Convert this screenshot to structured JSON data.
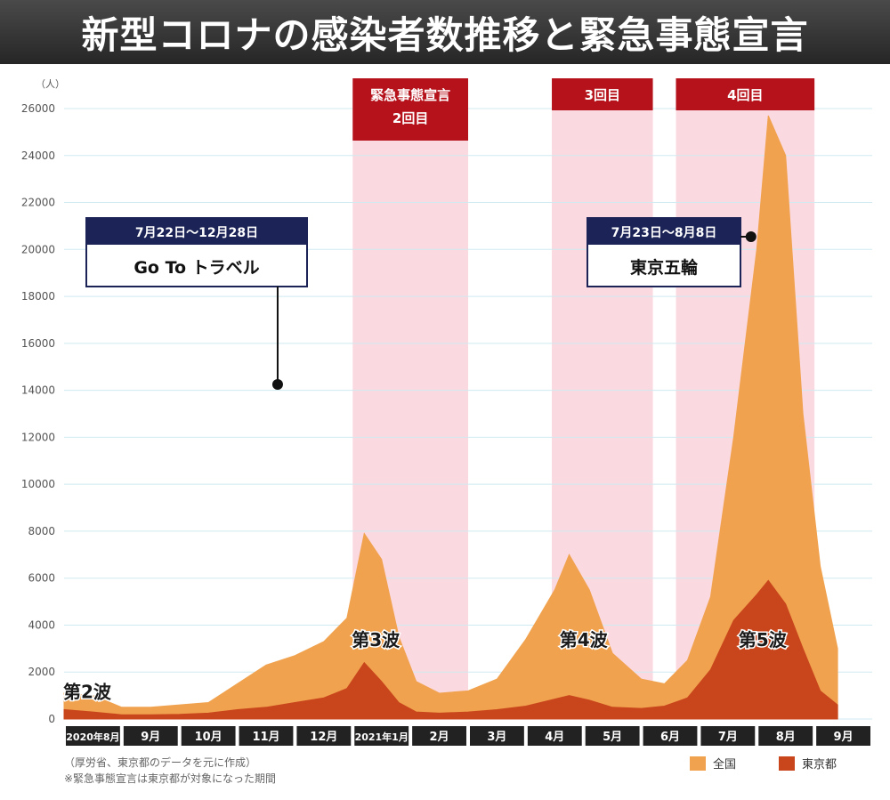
{
  "title": "新型コロナの感染者数推移と緊急事態宣言",
  "notes": [
    "（厚労省、東京都のデータを元に作成）",
    "※緊急事態宣言は東京都が対象になった期間"
  ],
  "colors": {
    "national": "#f0a24e",
    "tokyo": "#c9461c",
    "emergency_band": "#fbd9e1",
    "emergency_label": "#b5121b",
    "callout_header": "#1c2356",
    "grid": "#cfeaf0",
    "month_bar": "#222222"
  },
  "chart_data": {
    "type": "area",
    "ylabel": "（人）",
    "ylim": [
      0,
      26000
    ],
    "yticks": [
      0,
      2000,
      4000,
      6000,
      8000,
      10000,
      12000,
      14000,
      16000,
      18000,
      20000,
      22000,
      24000,
      26000
    ],
    "months": [
      "2020年8月",
      "9月",
      "10月",
      "11月",
      "12月",
      "2021年1月",
      "2月",
      "3月",
      "4月",
      "5月",
      "6月",
      "7月",
      "8月",
      "9月"
    ],
    "grid": true,
    "legend": {
      "position": "bottom-right",
      "items": [
        "全国",
        "東京都"
      ]
    },
    "series": [
      {
        "name": "全国",
        "points": [
          [
            0,
            1100
          ],
          [
            0.5,
            1000
          ],
          [
            1.0,
            500
          ],
          [
            1.5,
            500
          ],
          [
            2.0,
            600
          ],
          [
            2.5,
            700
          ],
          [
            3.0,
            1500
          ],
          [
            3.5,
            2300
          ],
          [
            4.0,
            2700
          ],
          [
            4.5,
            3300
          ],
          [
            4.9,
            4300
          ],
          [
            5.2,
            7900
          ],
          [
            5.5,
            6800
          ],
          [
            5.8,
            3500
          ],
          [
            6.1,
            1600
          ],
          [
            6.5,
            1100
          ],
          [
            7.0,
            1200
          ],
          [
            7.5,
            1700
          ],
          [
            8.0,
            3400
          ],
          [
            8.5,
            5500
          ],
          [
            8.75,
            7000
          ],
          [
            9.1,
            5500
          ],
          [
            9.5,
            2800
          ],
          [
            10.0,
            1700
          ],
          [
            10.4,
            1500
          ],
          [
            10.8,
            2500
          ],
          [
            11.2,
            5200
          ],
          [
            11.6,
            12000
          ],
          [
            12.0,
            20000
          ],
          [
            12.2,
            25700
          ],
          [
            12.5,
            24000
          ],
          [
            12.8,
            13000
          ],
          [
            13.1,
            6500
          ],
          [
            13.4,
            3000
          ]
        ]
      },
      {
        "name": "東京都",
        "points": [
          [
            0,
            400
          ],
          [
            0.5,
            300
          ],
          [
            1.0,
            180
          ],
          [
            1.5,
            180
          ],
          [
            2.0,
            200
          ],
          [
            2.5,
            250
          ],
          [
            3.0,
            400
          ],
          [
            3.5,
            500
          ],
          [
            4.0,
            700
          ],
          [
            4.5,
            900
          ],
          [
            4.9,
            1300
          ],
          [
            5.2,
            2400
          ],
          [
            5.5,
            1600
          ],
          [
            5.8,
            700
          ],
          [
            6.1,
            300
          ],
          [
            6.5,
            250
          ],
          [
            7.0,
            300
          ],
          [
            7.5,
            400
          ],
          [
            8.0,
            550
          ],
          [
            8.5,
            850
          ],
          [
            8.75,
            1000
          ],
          [
            9.1,
            800
          ],
          [
            9.5,
            500
          ],
          [
            10.0,
            450
          ],
          [
            10.4,
            550
          ],
          [
            10.8,
            900
          ],
          [
            11.2,
            2100
          ],
          [
            11.6,
            4200
          ],
          [
            12.0,
            5300
          ],
          [
            12.2,
            5900
          ],
          [
            12.5,
            4900
          ],
          [
            12.8,
            3000
          ],
          [
            13.1,
            1200
          ],
          [
            13.4,
            600
          ]
        ]
      }
    ],
    "emergency_periods": [
      {
        "label": "緊急事態宣言 2回目",
        "start": 5.0,
        "end": 7.0
      },
      {
        "label": "3回目",
        "start": 8.45,
        "end": 10.2
      },
      {
        "label": "4回目",
        "start": 10.6,
        "end": 13.0
      }
    ],
    "wave_labels": [
      {
        "text": "第2波",
        "x": 0.4,
        "y": 900
      },
      {
        "text": "第3波",
        "x": 5.4,
        "y": 3100
      },
      {
        "text": "第4波",
        "x": 9.0,
        "y": 3100
      },
      {
        "text": "第5波",
        "x": 12.1,
        "y": 3100
      }
    ],
    "callouts": [
      {
        "date": "7月22日～12月28日",
        "label": "Go To トラベル",
        "anchor_x": 3.7
      },
      {
        "date": "7月23日～8月8日",
        "label": "東京五輪",
        "anchor_x": 11.9
      }
    ]
  }
}
